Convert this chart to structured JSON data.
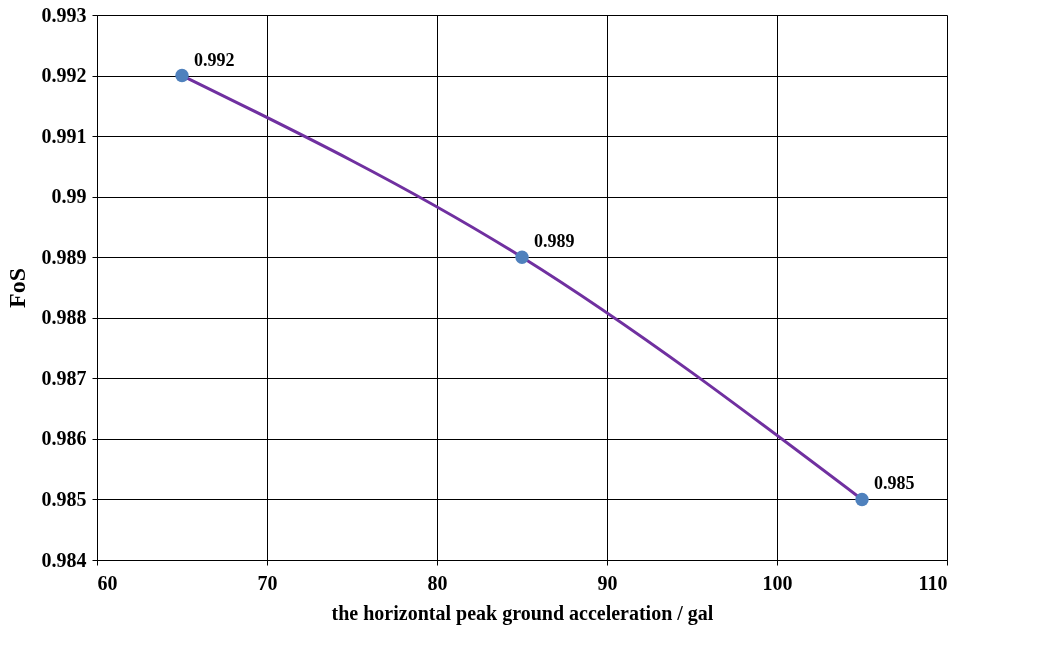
{
  "chart_data": {
    "type": "line",
    "xlabel": "the horizontal peak ground acceleration / gal",
    "ylabel": "FoS",
    "x": [
      65,
      85,
      105
    ],
    "series": [
      {
        "color": "#7030a0",
        "colors": [
          "#4f81bd",
          "#4f81bd",
          "#4f81bd"
        ],
        "values": [
          0.992,
          0.989,
          0.985
        ]
      }
    ],
    "xlim": [
      60,
      110
    ],
    "xticks": [
      60,
      70,
      80,
      90,
      100,
      110
    ],
    "ylim": [
      0.984,
      0.993
    ],
    "yticks": [
      0.984,
      0.985,
      0.986,
      0.987,
      0.988,
      0.989,
      0.99,
      0.991,
      0.992,
      0.993
    ],
    "grid": true,
    "marker": "circle",
    "data_labels": true
  }
}
